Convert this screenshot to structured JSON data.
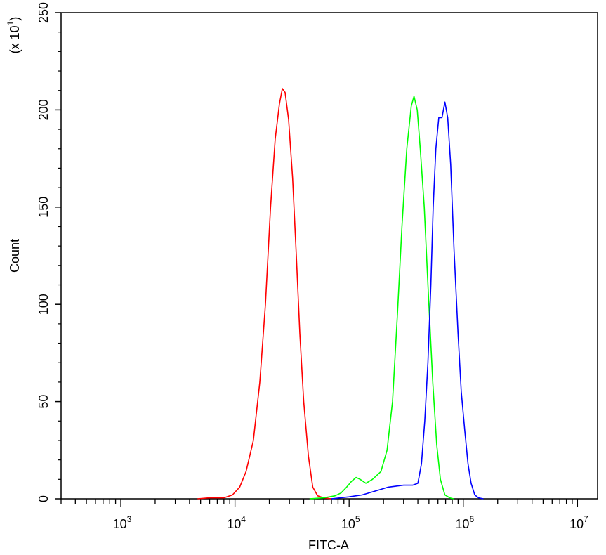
{
  "chart_data": {
    "type": "line",
    "title": "",
    "xlabel": "FITC-A",
    "ylabel": "Count",
    "y_multiplier_label": "(x 10",
    "y_multiplier_exp": "1",
    "y_multiplier_close": ")",
    "x_scale": "log",
    "xlim": [
      300,
      15000000
    ],
    "ylim": [
      0,
      250
    ],
    "grid": false,
    "x_ticks": [
      {
        "value": 1000,
        "base": "10",
        "exp": "3"
      },
      {
        "value": 10000,
        "base": "10",
        "exp": "4"
      },
      {
        "value": 100000,
        "base": "10",
        "exp": "5"
      },
      {
        "value": 1000000,
        "base": "10",
        "exp": "6"
      },
      {
        "value": 10000000,
        "base": "10",
        "exp": "7"
      }
    ],
    "y_ticks": [
      {
        "value": 0,
        "label": "0"
      },
      {
        "value": 50,
        "label": "50"
      },
      {
        "value": 100,
        "label": "100"
      },
      {
        "value": 150,
        "label": "150"
      },
      {
        "value": 200,
        "label": "200"
      },
      {
        "value": 250,
        "label": "250"
      }
    ],
    "series": [
      {
        "color": "#ff0000",
        "points": [
          [
            4700,
            0
          ],
          [
            6000,
            0.5
          ],
          [
            8000,
            0.5
          ],
          [
            9500,
            2
          ],
          [
            11000,
            6
          ],
          [
            12500,
            14
          ],
          [
            14500,
            30
          ],
          [
            16500,
            60
          ],
          [
            18500,
            100
          ],
          [
            20500,
            150
          ],
          [
            22500,
            185
          ],
          [
            24500,
            203
          ],
          [
            26000,
            211
          ],
          [
            27500,
            209
          ],
          [
            29500,
            195
          ],
          [
            32000,
            165
          ],
          [
            34500,
            125
          ],
          [
            37000,
            85
          ],
          [
            40000,
            50
          ],
          [
            44000,
            22
          ],
          [
            48000,
            6
          ],
          [
            53000,
            1.5
          ],
          [
            60000,
            0.5
          ],
          [
            70000,
            0
          ]
        ]
      },
      {
        "color": "#00ff00",
        "points": [
          [
            45000,
            0
          ],
          [
            60000,
            0.5
          ],
          [
            75000,
            1.5
          ],
          [
            85000,
            3
          ],
          [
            95000,
            6
          ],
          [
            105000,
            9
          ],
          [
            115000,
            11
          ],
          [
            125000,
            10
          ],
          [
            140000,
            8
          ],
          [
            160000,
            10
          ],
          [
            190000,
            14
          ],
          [
            215000,
            25
          ],
          [
            240000,
            50
          ],
          [
            265000,
            95
          ],
          [
            290000,
            140
          ],
          [
            320000,
            180
          ],
          [
            350000,
            202
          ],
          [
            370000,
            207
          ],
          [
            395000,
            200
          ],
          [
            420000,
            180
          ],
          [
            455000,
            150
          ],
          [
            495000,
            105
          ],
          [
            540000,
            60
          ],
          [
            585000,
            28
          ],
          [
            630000,
            10
          ],
          [
            690000,
            2
          ],
          [
            760000,
            0.5
          ],
          [
            820000,
            0
          ]
        ]
      },
      {
        "color": "#0000ff",
        "points": [
          [
            70000,
            0
          ],
          [
            100000,
            1
          ],
          [
            130000,
            2
          ],
          [
            170000,
            4
          ],
          [
            220000,
            6
          ],
          [
            300000,
            7
          ],
          [
            360000,
            7
          ],
          [
            400000,
            8
          ],
          [
            430000,
            18
          ],
          [
            460000,
            40
          ],
          [
            490000,
            70
          ],
          [
            520000,
            110
          ],
          [
            545000,
            150
          ],
          [
            575000,
            180
          ],
          [
            610000,
            196
          ],
          [
            650000,
            196
          ],
          [
            690000,
            204
          ],
          [
            730000,
            196
          ],
          [
            775000,
            172
          ],
          [
            830000,
            128
          ],
          [
            900000,
            85
          ],
          [
            960000,
            55
          ],
          [
            1030000,
            35
          ],
          [
            1100000,
            18
          ],
          [
            1170000,
            8
          ],
          [
            1260000,
            2
          ],
          [
            1360000,
            0.5
          ],
          [
            1500000,
            0
          ]
        ]
      }
    ]
  }
}
